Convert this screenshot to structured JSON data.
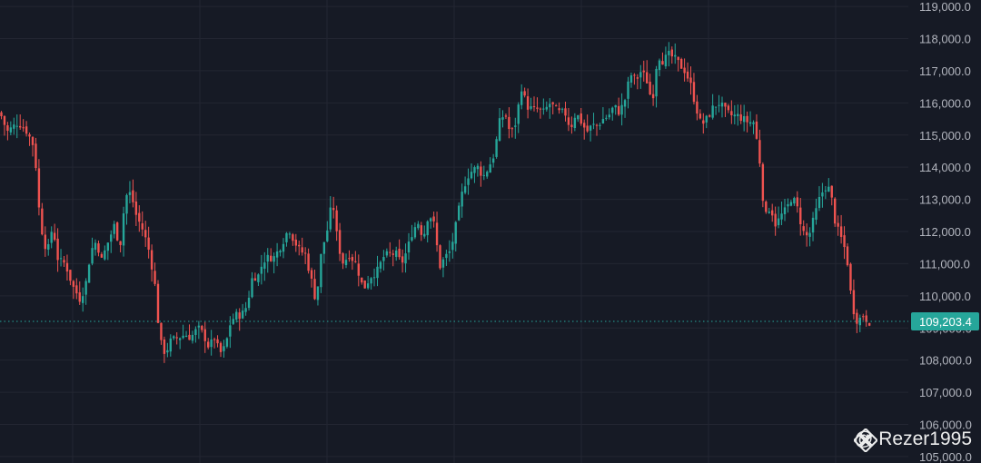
{
  "chart_data": {
    "type": "candlestick",
    "y_axis": {
      "range": [
        104800,
        119200
      ],
      "tick_labels": [
        "105,000.0",
        "106,000.0",
        "107,000.0",
        "108,000.0",
        "109,000.0",
        "110,000.0",
        "111,000.0",
        "112,000.0",
        "113,000.0",
        "114,000.0",
        "115,000.0",
        "116,000.0",
        "117,000.0",
        "118,000.0",
        "119,000.0"
      ],
      "tick_values": [
        105000,
        106000,
        107000,
        108000,
        109000,
        110000,
        111000,
        112000,
        113000,
        114000,
        115000,
        116000,
        117000,
        118000,
        119000
      ]
    },
    "grid": true,
    "current_price": {
      "value": 109203.4,
      "label": "109,203.4"
    },
    "colors": {
      "up": "#26a69a",
      "down": "#ef5350",
      "grid": "#232632",
      "axis_text": "#b2b5be",
      "price_line": "#26a69a",
      "background": "#161a25"
    },
    "close_path": [
      [
        0,
        115700
      ],
      [
        8,
        115100
      ],
      [
        20,
        115400
      ],
      [
        30,
        115100
      ],
      [
        38,
        114600
      ],
      [
        44,
        112300
      ],
      [
        52,
        111300
      ],
      [
        58,
        112200
      ],
      [
        64,
        111100
      ],
      [
        72,
        111000
      ],
      [
        80,
        110300
      ],
      [
        88,
        109900
      ],
      [
        94,
        110300
      ],
      [
        100,
        111400
      ],
      [
        106,
        111700
      ],
      [
        112,
        111100
      ],
      [
        118,
        111600
      ],
      [
        126,
        112200
      ],
      [
        132,
        111500
      ],
      [
        138,
        113100
      ],
      [
        144,
        113200
      ],
      [
        150,
        112500
      ],
      [
        158,
        112000
      ],
      [
        164,
        111400
      ],
      [
        170,
        110500
      ],
      [
        176,
        108600
      ],
      [
        182,
        108200
      ],
      [
        188,
        108600
      ],
      [
        196,
        108700
      ],
      [
        204,
        108800
      ],
      [
        210,
        108700
      ],
      [
        218,
        109000
      ],
      [
        224,
        108800
      ],
      [
        230,
        108400
      ],
      [
        236,
        108700
      ],
      [
        242,
        108200
      ],
      [
        248,
        108400
      ],
      [
        254,
        109200
      ],
      [
        260,
        109400
      ],
      [
        266,
        109400
      ],
      [
        272,
        109700
      ],
      [
        278,
        110600
      ],
      [
        284,
        110600
      ],
      [
        290,
        111100
      ],
      [
        296,
        111200
      ],
      [
        302,
        111200
      ],
      [
        310,
        111600
      ],
      [
        318,
        112100
      ],
      [
        324,
        111700
      ],
      [
        330,
        111400
      ],
      [
        336,
        111300
      ],
      [
        342,
        110600
      ],
      [
        348,
        109800
      ],
      [
        354,
        111400
      ],
      [
        360,
        112000
      ],
      [
        366,
        113000
      ],
      [
        372,
        111600
      ],
      [
        378,
        111000
      ],
      [
        384,
        111300
      ],
      [
        392,
        111000
      ],
      [
        400,
        110200
      ],
      [
        408,
        110600
      ],
      [
        416,
        110800
      ],
      [
        422,
        111200
      ],
      [
        428,
        111300
      ],
      [
        436,
        111300
      ],
      [
        442,
        111000
      ],
      [
        448,
        111400
      ],
      [
        454,
        112000
      ],
      [
        460,
        112300
      ],
      [
        466,
        111800
      ],
      [
        472,
        112600
      ],
      [
        478,
        112200
      ],
      [
        484,
        110900
      ],
      [
        490,
        111200
      ],
      [
        496,
        111400
      ],
      [
        502,
        112200
      ],
      [
        508,
        113100
      ],
      [
        514,
        113700
      ],
      [
        520,
        113900
      ],
      [
        526,
        114000
      ],
      [
        532,
        113700
      ],
      [
        538,
        114000
      ],
      [
        544,
        114400
      ],
      [
        550,
        115400
      ],
      [
        556,
        115700
      ],
      [
        562,
        115000
      ],
      [
        568,
        115400
      ],
      [
        574,
        116500
      ],
      [
        580,
        115900
      ],
      [
        586,
        115800
      ],
      [
        592,
        115800
      ],
      [
        598,
        115700
      ],
      [
        606,
        116000
      ],
      [
        614,
        115700
      ],
      [
        622,
        115700
      ],
      [
        628,
        115200
      ],
      [
        634,
        115700
      ],
      [
        640,
        115400
      ],
      [
        646,
        115100
      ],
      [
        652,
        115300
      ],
      [
        658,
        115300
      ],
      [
        664,
        115500
      ],
      [
        670,
        115600
      ],
      [
        676,
        115900
      ],
      [
        682,
        115700
      ],
      [
        688,
        116100
      ],
      [
        694,
        116900
      ],
      [
        700,
        116700
      ],
      [
        706,
        117000
      ],
      [
        712,
        116700
      ],
      [
        718,
        116000
      ],
      [
        724,
        117500
      ],
      [
        730,
        117300
      ],
      [
        736,
        117500
      ],
      [
        742,
        117400
      ],
      [
        748,
        117200
      ],
      [
        754,
        117000
      ],
      [
        760,
        116600
      ],
      [
        766,
        115900
      ],
      [
        772,
        115300
      ],
      [
        778,
        115500
      ],
      [
        786,
        115900
      ],
      [
        792,
        116000
      ],
      [
        800,
        115700
      ],
      [
        806,
        115600
      ],
      [
        812,
        115600
      ],
      [
        818,
        115500
      ],
      [
        824,
        115400
      ],
      [
        830,
        115400
      ],
      [
        836,
        114300
      ],
      [
        842,
        112400
      ],
      [
        848,
        112800
      ],
      [
        854,
        112200
      ],
      [
        860,
        112500
      ],
      [
        866,
        112700
      ],
      [
        872,
        113100
      ],
      [
        878,
        112700
      ],
      [
        884,
        112000
      ],
      [
        890,
        111800
      ],
      [
        896,
        112400
      ],
      [
        902,
        113000
      ],
      [
        908,
        113400
      ],
      [
        914,
        113300
      ],
      [
        920,
        112200
      ],
      [
        926,
        111800
      ],
      [
        932,
        111300
      ],
      [
        938,
        109700
      ],
      [
        944,
        109200
      ],
      [
        950,
        109400
      ],
      [
        956,
        109200
      ],
      [
        960,
        109200
      ]
    ]
  },
  "watermark": {
    "text": "@ Rezer1995",
    "logo": "binance-diamond-icon"
  }
}
